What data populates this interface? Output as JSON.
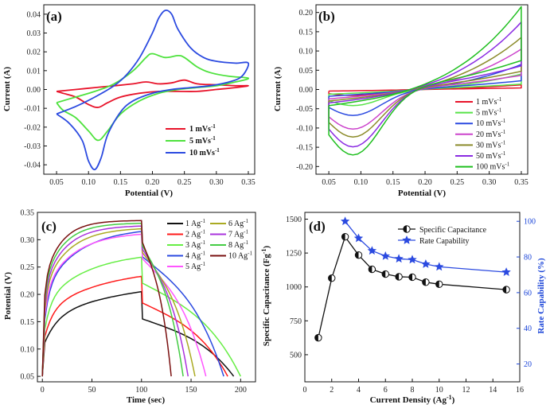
{
  "chart_data": [
    {
      "panel": "a",
      "panel_label": "(a)",
      "type": "line",
      "xlabel": "Potential (V)",
      "ylabel": "Current (A)",
      "xlim": [
        0.03,
        0.36
      ],
      "ylim": [
        -0.045,
        0.045
      ],
      "xticks": [
        "0.05",
        "0.10",
        "0.15",
        "0.20",
        "0.25",
        "0.30",
        "0.35"
      ],
      "yticks": [
        "0.04",
        "0.03",
        "0.02",
        "0.01",
        "0.00",
        "-0.01",
        "-0.02",
        "-0.03",
        "-0.04"
      ],
      "series": [
        {
          "name": "1 mVs-1",
          "color": "#e8132a",
          "x": [
            0.05,
            0.08,
            0.11,
            0.14,
            0.17,
            0.19,
            0.21,
            0.23,
            0.25,
            0.27,
            0.3,
            0.33,
            0.35,
            0.33,
            0.3,
            0.27,
            0.24,
            0.21,
            0.18,
            0.15,
            0.13,
            0.115,
            0.1,
            0.08,
            0.06,
            0.05
          ],
          "y": [
            -0.001,
            0.0,
            0.001,
            0.002,
            0.003,
            0.004,
            0.003,
            0.0035,
            0.005,
            0.003,
            0.0025,
            0.002,
            0.002,
            0.001,
            0.0,
            -0.001,
            -0.001,
            -0.001,
            -0.002,
            -0.004,
            -0.007,
            -0.0095,
            -0.008,
            -0.004,
            -0.002,
            -0.001
          ]
        },
        {
          "name": "5 mVs-1",
          "color": "#4ee23d",
          "x": [
            0.05,
            0.08,
            0.11,
            0.14,
            0.17,
            0.19,
            0.2,
            0.22,
            0.24,
            0.25,
            0.27,
            0.29,
            0.32,
            0.35,
            0.33,
            0.3,
            0.27,
            0.24,
            0.21,
            0.18,
            0.15,
            0.13,
            0.115,
            0.1,
            0.08,
            0.06,
            0.05
          ],
          "y": [
            -0.007,
            -0.004,
            -0.001,
            0.003,
            0.01,
            0.017,
            0.019,
            0.017,
            0.018,
            0.017,
            0.012,
            0.009,
            0.007,
            0.006,
            0.004,
            0.002,
            0.001,
            0.0,
            -0.002,
            -0.006,
            -0.013,
            -0.022,
            -0.027,
            -0.022,
            -0.015,
            -0.011,
            -0.007
          ]
        },
        {
          "name": "10 mVs-1",
          "color": "#2b4ae0",
          "x": [
            0.05,
            0.08,
            0.11,
            0.14,
            0.16,
            0.18,
            0.2,
            0.21,
            0.22,
            0.23,
            0.24,
            0.26,
            0.28,
            0.3,
            0.33,
            0.35,
            0.34,
            0.32,
            0.29,
            0.26,
            0.23,
            0.2,
            0.17,
            0.15,
            0.13,
            0.12,
            0.11,
            0.1,
            0.09,
            0.07,
            0.05
          ],
          "y": [
            -0.013,
            -0.009,
            -0.004,
            0.002,
            0.008,
            0.017,
            0.03,
            0.038,
            0.042,
            0.04,
            0.032,
            0.022,
            0.017,
            0.015,
            0.014,
            0.014,
            0.007,
            0.004,
            0.002,
            0.001,
            0.0,
            -0.002,
            -0.006,
            -0.012,
            -0.024,
            -0.036,
            -0.0425,
            -0.038,
            -0.027,
            -0.018,
            -0.013
          ]
        }
      ]
    },
    {
      "panel": "b",
      "panel_label": "(b)",
      "type": "line",
      "xlabel": "Potential (V)",
      "ylabel": "Current (A)",
      "xlim": [
        0.03,
        0.36
      ],
      "ylim": [
        -0.22,
        0.22
      ],
      "xticks": [
        "0.05",
        "0.10",
        "0.15",
        "0.20",
        "0.25",
        "0.30",
        "0.35"
      ],
      "yticks": [
        "0.20",
        "0.15",
        "0.10",
        "0.05",
        "0.00",
        "-0.05",
        "-0.10",
        "-0.15",
        "-0.20"
      ],
      "series": [
        {
          "name": "1 mVs-1",
          "color": "#e8132a",
          "peak": 0.012,
          "min": -0.015,
          "amp": 0.012
        },
        {
          "name": "5 mVs-1",
          "color": "#57e347",
          "peak": 0.04,
          "min": -0.04,
          "amp": 0.035
        },
        {
          "name": "10 mVs-1",
          "color": "#2b4ae0",
          "peak": 0.065,
          "min": -0.065,
          "amp": 0.05
        },
        {
          "name": "20 mVs-1",
          "color": "#cc44cc",
          "peak": 0.105,
          "min": -0.1,
          "amp": 0.07
        },
        {
          "name": "30 mVs-1",
          "color": "#8b8b2a",
          "peak": 0.135,
          "min": -0.12,
          "amp": 0.085
        },
        {
          "name": "50 mVs-1",
          "color": "#8a2be2",
          "peak": 0.175,
          "min": -0.145,
          "amp": 0.1
        },
        {
          "name": "100 mVs-1",
          "color": "#1fbf1f",
          "peak": 0.215,
          "min": -0.165,
          "amp": 0.12
        }
      ]
    },
    {
      "panel": "c",
      "panel_label": "(c)",
      "type": "line",
      "xlabel": "Time (sec)",
      "ylabel": "Potential (V)",
      "xlim": [
        -5,
        215
      ],
      "ylim": [
        0.04,
        0.35
      ],
      "xticks": [
        "0",
        "50",
        "100",
        "150",
        "200"
      ],
      "yticks": [
        "0.35",
        "0.30",
        "0.25",
        "0.20",
        "0.15",
        "0.10",
        "0.05"
      ],
      "series": [
        {
          "name": "1 Ag-1",
          "color": "#111111",
          "top": 0.205,
          "tend": 193
        },
        {
          "name": "2 Ag-1",
          "color": "#ff1a1a",
          "top": 0.233,
          "tend": 187
        },
        {
          "name": "3 Ag-1",
          "color": "#66ee44",
          "top": 0.268,
          "tend": 200
        },
        {
          "name": "4 Ag-1",
          "color": "#2b4ae0",
          "top": 0.315,
          "tend": 183
        },
        {
          "name": "5 Ag-1",
          "color": "#ff55ff",
          "top": 0.31,
          "tend": 165
        },
        {
          "name": "6 Ag-1",
          "color": "#aaaa22",
          "top": 0.32,
          "tend": 154
        },
        {
          "name": "7 Ag-1",
          "color": "#aa33dd",
          "top": 0.325,
          "tend": 147
        },
        {
          "name": "8 Ag-1",
          "color": "#44cc44",
          "top": 0.33,
          "tend": 142
        },
        {
          "name": "10 Ag-1",
          "color": "#7a1010",
          "top": 0.335,
          "tend": 130
        }
      ]
    },
    {
      "panel": "d",
      "panel_label": "(d)",
      "type": "scatter",
      "xlabel": "Current Density (Ag-1)",
      "ylabel": "Specific Capacitance (Fg-1)",
      "y2label": "Rate Capability (%)",
      "xlim": [
        0,
        16
      ],
      "ylim": [
        300,
        1550
      ],
      "y2lim": [
        10,
        105
      ],
      "xticks": [
        "0",
        "2",
        "4",
        "6",
        "8",
        "10",
        "12",
        "14",
        "16"
      ],
      "yticks": [
        "1500",
        "1250",
        "1000",
        "750",
        "500"
      ],
      "y2ticks": [
        "100",
        "80",
        "60",
        "40",
        "20"
      ],
      "series": [
        {
          "name": "Specific Capacitance",
          "color": "#111111",
          "x": [
            1,
            2,
            3,
            4,
            5,
            6,
            7,
            8,
            9,
            10,
            15
          ],
          "y": [
            625,
            1065,
            1370,
            1235,
            1130,
            1095,
            1075,
            1072,
            1035,
            1020,
            980
          ]
        },
        {
          "name": "Rate Capability",
          "color": "#2b4ae0",
          "axis": "y2",
          "x": [
            3,
            4,
            5,
            6,
            7,
            8,
            9,
            10,
            15
          ],
          "y": [
            100,
            90.5,
            83.5,
            80.5,
            79,
            78.5,
            76,
            74.5,
            71.5
          ]
        }
      ]
    }
  ]
}
